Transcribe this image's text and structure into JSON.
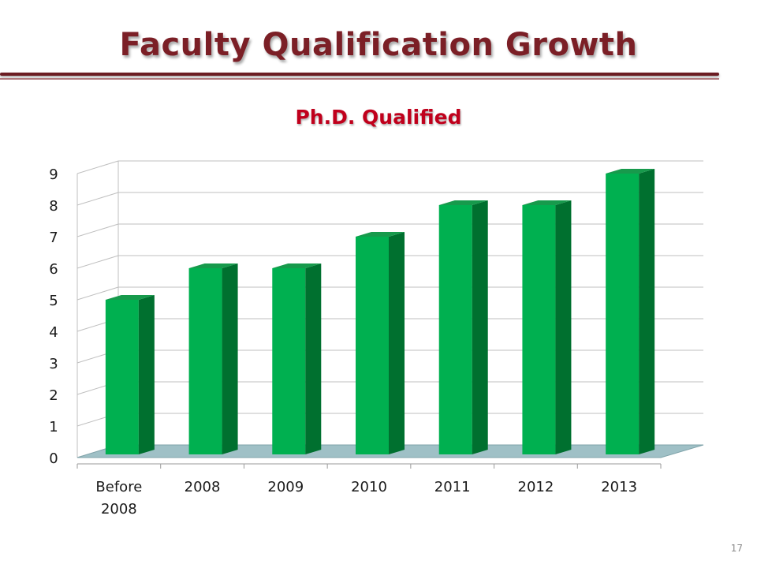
{
  "slide": {
    "title": "Faculty Qualification Growth",
    "page_number": "17"
  },
  "colors": {
    "title": "#7b1f26",
    "chart_title": "#c0001c",
    "bar_front": "#00b050",
    "bar_side": "#00702f",
    "bar_top": "#179a4c",
    "floor": "#9fc0c6",
    "gridline": "#bfbfbf"
  },
  "chart_data": {
    "type": "bar",
    "title": "Ph.D. Qualified",
    "categories": [
      "Before 2008",
      "2008",
      "2009",
      "2010",
      "2011",
      "2012",
      "2013"
    ],
    "values": [
      5,
      6,
      6,
      7,
      8,
      8,
      9
    ],
    "ylim": [
      0,
      9
    ],
    "yticks": [
      0,
      1,
      2,
      3,
      4,
      5,
      6,
      7,
      8,
      9
    ],
    "grid": true,
    "legend": "none",
    "style": "3d-column"
  }
}
